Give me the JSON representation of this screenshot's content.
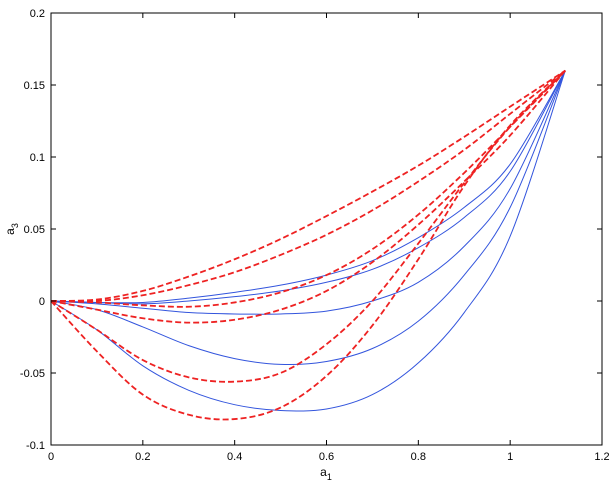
{
  "chart_data": {
    "type": "line",
    "title": "",
    "xlabel": "a",
    "xlabel_subscript": "1",
    "ylabel": "a",
    "ylabel_subscript": "3",
    "xlim": [
      0,
      1.2
    ],
    "ylim": [
      -0.1,
      0.2
    ],
    "xticks": [
      0,
      0.2,
      0.4,
      0.6,
      0.8,
      1,
      1.2
    ],
    "xtick_labels": [
      "0",
      "0.2",
      "0.4",
      "0.6",
      "0.8",
      "1",
      "1.2"
    ],
    "yticks": [
      -0.1,
      -0.05,
      0,
      0.05,
      0.1,
      0.15,
      0.2
    ],
    "ytick_labels": [
      "-0.1",
      "-0.05",
      "0",
      "0.05",
      "0.1",
      "0.15",
      "0.2"
    ],
    "grid": false,
    "legend": "none",
    "colors": {
      "solid": "#3355dd",
      "dashed": "#ee2222",
      "axes": "#000000"
    },
    "series": [
      {
        "style": "solid",
        "x": [
          0,
          0.1,
          0.2,
          0.3,
          0.4,
          0.5,
          0.6,
          0.7,
          0.8,
          0.9,
          1.0,
          1.12
        ],
        "y": [
          0,
          -0.001,
          -0.001,
          0.002,
          0.006,
          0.011,
          0.018,
          0.028,
          0.044,
          0.065,
          0.095,
          0.16
        ]
      },
      {
        "style": "solid",
        "x": [
          0,
          0.1,
          0.2,
          0.3,
          0.4,
          0.5,
          0.6,
          0.7,
          0.8,
          0.9,
          1.0,
          1.12
        ],
        "y": [
          0,
          -0.001,
          -0.002,
          0.0,
          0.003,
          0.007,
          0.013,
          0.022,
          0.037,
          0.058,
          0.09,
          0.16
        ]
      },
      {
        "style": "solid",
        "x": [
          0,
          0.1,
          0.2,
          0.3,
          0.4,
          0.5,
          0.6,
          0.7,
          0.8,
          0.9,
          1.0,
          1.12
        ],
        "y": [
          0,
          -0.002,
          -0.005,
          -0.008,
          -0.009,
          -0.009,
          -0.007,
          0.0,
          0.013,
          0.038,
          0.078,
          0.16
        ]
      },
      {
        "style": "solid",
        "x": [
          0,
          0.1,
          0.2,
          0.3,
          0.4,
          0.5,
          0.6,
          0.7,
          0.8,
          0.9,
          1.0,
          1.12
        ],
        "y": [
          0,
          -0.006,
          -0.018,
          -0.031,
          -0.04,
          -0.044,
          -0.042,
          -0.033,
          -0.014,
          0.018,
          0.065,
          0.16
        ]
      },
      {
        "style": "solid",
        "x": [
          0,
          0.1,
          0.2,
          0.3,
          0.4,
          0.5,
          0.6,
          0.7,
          0.8,
          0.9,
          1.0,
          1.12
        ],
        "y": [
          0,
          -0.02,
          -0.045,
          -0.062,
          -0.072,
          -0.076,
          -0.075,
          -0.065,
          -0.043,
          -0.008,
          0.045,
          0.16
        ]
      },
      {
        "style": "dashed",
        "x": [
          0,
          0.1,
          0.2,
          0.3,
          0.4,
          0.5,
          0.6,
          0.7,
          0.8,
          0.9,
          1.0,
          1.12
        ],
        "y": [
          0,
          0.001,
          0.007,
          0.017,
          0.029,
          0.043,
          0.059,
          0.076,
          0.094,
          0.114,
          0.135,
          0.16
        ]
      },
      {
        "style": "dashed",
        "x": [
          0,
          0.1,
          0.2,
          0.3,
          0.4,
          0.5,
          0.6,
          0.7,
          0.8,
          0.9,
          1.0,
          1.12
        ],
        "y": [
          0,
          0.0,
          0.004,
          0.011,
          0.02,
          0.032,
          0.046,
          0.063,
          0.083,
          0.105,
          0.13,
          0.16
        ]
      },
      {
        "style": "dashed",
        "x": [
          0,
          0.1,
          0.2,
          0.3,
          0.4,
          0.5,
          0.6,
          0.7,
          0.8,
          0.9,
          1.0,
          1.12
        ],
        "y": [
          0,
          -0.001,
          -0.003,
          -0.004,
          -0.001,
          0.006,
          0.018,
          0.036,
          0.06,
          0.089,
          0.121,
          0.16
        ]
      },
      {
        "style": "dashed",
        "x": [
          0,
          0.1,
          0.2,
          0.3,
          0.4,
          0.5,
          0.6,
          0.7,
          0.8,
          0.9,
          1.0,
          1.12
        ],
        "y": [
          0,
          -0.006,
          -0.012,
          -0.015,
          -0.013,
          -0.006,
          0.007,
          0.027,
          0.053,
          0.083,
          0.115,
          0.16
        ]
      },
      {
        "style": "dashed",
        "x": [
          0,
          0.1,
          0.2,
          0.3,
          0.4,
          0.5,
          0.6,
          0.7,
          0.8,
          0.9,
          1.0,
          1.12
        ],
        "y": [
          0,
          -0.02,
          -0.041,
          -0.053,
          -0.056,
          -0.05,
          -0.03,
          0.0,
          0.04,
          0.082,
          0.121,
          0.16
        ]
      },
      {
        "style": "dashed",
        "x": [
          0,
          0.1,
          0.2,
          0.3,
          0.4,
          0.5,
          0.6,
          0.7,
          0.8,
          0.9,
          1.0,
          1.12
        ],
        "y": [
          0,
          -0.035,
          -0.065,
          -0.079,
          -0.082,
          -0.074,
          -0.052,
          -0.017,
          0.029,
          0.08,
          0.122,
          0.16
        ]
      }
    ]
  }
}
